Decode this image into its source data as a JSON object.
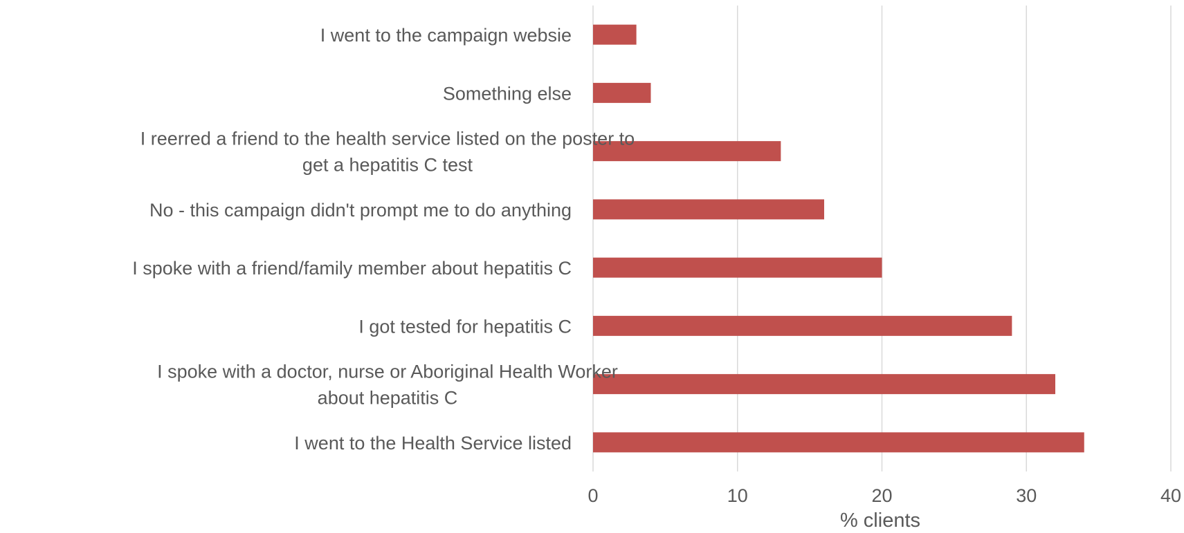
{
  "chart_data": {
    "type": "bar",
    "orientation": "horizontal",
    "categories": [
      "I went to the campaign websie",
      "Something else",
      "I reerred a friend to the health service listed on the poster to get a hepatitis C test",
      "No - this campaign didn't prompt me to do anything",
      "I spoke with a friend/family member about hepatitis C",
      "I got tested for hepatitis C",
      "I spoke with a doctor, nurse or Aboriginal Health Worker about hepatitis C",
      "I went to the Health Service listed"
    ],
    "category_lines": [
      [
        "I went to the campaign websie"
      ],
      [
        "Something else"
      ],
      [
        "I reerred a friend to the health service listed on the poster to",
        "get a hepatitis C test"
      ],
      [
        "No - this campaign didn't prompt me to do anything"
      ],
      [
        "I spoke with a friend/family member about hepatitis C"
      ],
      [
        "I got tested for hepatitis C"
      ],
      [
        "I spoke with a doctor, nurse or Aboriginal Health Worker",
        "about hepatitis C"
      ],
      [
        "I went to the Health Service listed"
      ]
    ],
    "values": [
      3,
      4,
      13,
      16,
      20,
      29,
      32,
      34
    ],
    "xlabel": "% clients",
    "ylabel": "",
    "title": "",
    "xlim": [
      0,
      40
    ],
    "x_ticks": [
      "0",
      "10",
      "20",
      "30",
      "40"
    ],
    "grid": "vertical",
    "legend": "none",
    "colors": {
      "bar": "#c0504d",
      "grid": "#d9d9d9",
      "text": "#595959"
    }
  }
}
